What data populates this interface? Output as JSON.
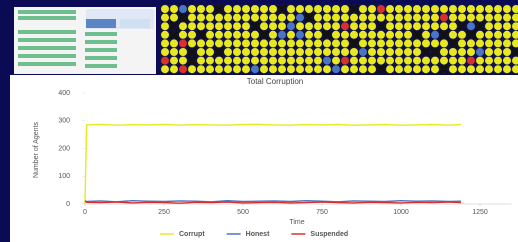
{
  "chart_data": {
    "type": "line",
    "title": "Total Corruption",
    "x_label": "Time",
    "y_label": "Number of Agents",
    "x": [
      0,
      5,
      50,
      100,
      150,
      200,
      250,
      300,
      350,
      400,
      450,
      500,
      550,
      600,
      650,
      700,
      750,
      800,
      850,
      900,
      950,
      1000,
      1050,
      1100,
      1150,
      1190
    ],
    "series": [
      {
        "name": "Corrupt",
        "color": "#e8e820",
        "values": [
          0,
          285,
          287,
          284,
          286,
          285,
          287,
          284,
          286,
          285,
          284,
          286,
          287,
          285,
          284,
          286,
          285,
          287,
          284,
          285,
          286,
          284,
          285,
          287,
          284,
          286
        ]
      },
      {
        "name": "Honest",
        "color": "#4a74c4",
        "values": [
          10,
          9,
          11,
          8,
          12,
          10,
          9,
          11,
          10,
          8,
          12,
          9,
          10,
          11,
          9,
          12,
          10,
          8,
          11,
          10,
          9,
          12,
          10,
          11,
          9,
          10
        ]
      },
      {
        "name": "Suspended",
        "color": "#d83030",
        "values": [
          12,
          6,
          5,
          7,
          4,
          6,
          5,
          3,
          6,
          5,
          7,
          4,
          5,
          6,
          4,
          5,
          7,
          5,
          4,
          6,
          5,
          4,
          6,
          5,
          7,
          5
        ]
      }
    ],
    "xlim": [
      0,
      1350
    ],
    "xticks": [
      0,
      250,
      500,
      750,
      1000,
      1250
    ],
    "ylim": [
      0,
      400
    ],
    "yticks": [
      0,
      100,
      200,
      300,
      400
    ],
    "grid": false
  }
}
